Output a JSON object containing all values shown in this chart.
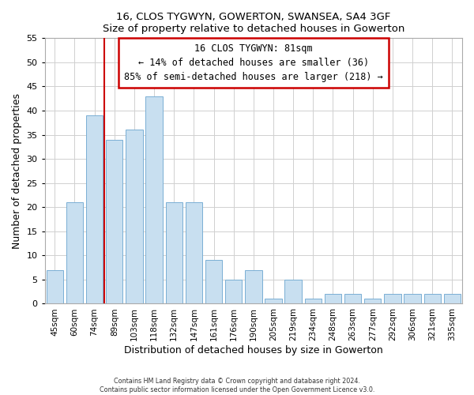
{
  "title": "16, CLOS TYGWYN, GOWERTON, SWANSEA, SA4 3GF",
  "subtitle": "Size of property relative to detached houses in Gowerton",
  "xlabel": "Distribution of detached houses by size in Gowerton",
  "ylabel": "Number of detached properties",
  "bar_labels": [
    "45sqm",
    "60sqm",
    "74sqm",
    "89sqm",
    "103sqm",
    "118sqm",
    "132sqm",
    "147sqm",
    "161sqm",
    "176sqm",
    "190sqm",
    "205sqm",
    "219sqm",
    "234sqm",
    "248sqm",
    "263sqm",
    "277sqm",
    "292sqm",
    "306sqm",
    "321sqm",
    "335sqm"
  ],
  "bar_values": [
    7,
    21,
    39,
    34,
    36,
    43,
    21,
    21,
    9,
    5,
    7,
    1,
    5,
    1,
    2,
    2,
    1,
    2,
    2,
    2,
    2
  ],
  "bar_color": "#c8dff0",
  "bar_edge_color": "#7aafd4",
  "vline_color": "#cc0000",
  "annotation_title": "16 CLOS TYGWYN: 81sqm",
  "annotation_line1": "← 14% of detached houses are smaller (36)",
  "annotation_line2": "85% of semi-detached houses are larger (218) →",
  "annotation_box_color": "#ffffff",
  "annotation_box_edge": "#cc0000",
  "ylim": [
    0,
    55
  ],
  "yticks": [
    0,
    5,
    10,
    15,
    20,
    25,
    30,
    35,
    40,
    45,
    50,
    55
  ],
  "footer_line1": "Contains HM Land Registry data © Crown copyright and database right 2024.",
  "footer_line2": "Contains public sector information licensed under the Open Government Licence v3.0."
}
